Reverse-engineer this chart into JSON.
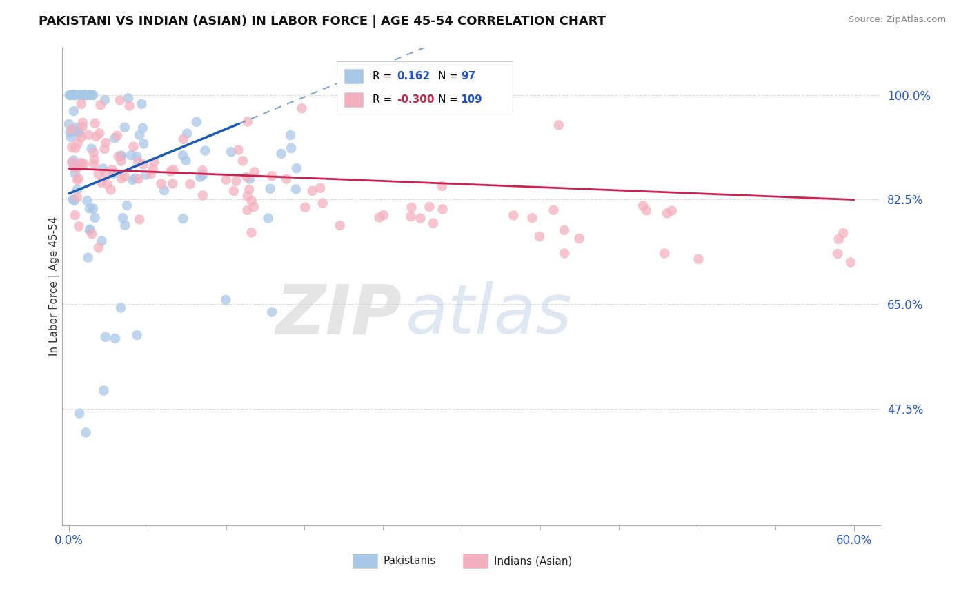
{
  "title": "PAKISTANI VS INDIAN (ASIAN) IN LABOR FORCE | AGE 45-54 CORRELATION CHART",
  "source": "Source: ZipAtlas.com",
  "ylabel": "In Labor Force | Age 45-54",
  "xlim": [
    -0.005,
    0.62
  ],
  "ylim": [
    0.28,
    1.08
  ],
  "yticks": [
    0.475,
    0.65,
    0.825,
    1.0
  ],
  "ytick_labels": [
    "47.5%",
    "65.0%",
    "82.5%",
    "100.0%"
  ],
  "xtick_labels": [
    "0.0%",
    "60.0%"
  ],
  "xticks": [
    0.0,
    0.6
  ],
  "r_pakistani": 0.162,
  "n_pakistani": 97,
  "r_indian": -0.3,
  "n_indian": 109,
  "pakistani_color": "#a8c8e8",
  "indian_color": "#f4b0c0",
  "trend_pakistani_color": "#1a5cb0",
  "trend_indian_color": "#d02050",
  "watermark_zip_color": "#d0d0d0",
  "watermark_atlas_color": "#c0d0e8",
  "background_color": "#ffffff",
  "legend_edge_color": "#cccccc",
  "r_value_blue_color": "#2255cc",
  "r_value_red_color": "#cc2244",
  "n_value_color": "#2255cc",
  "grid_color": "#dddddd",
  "axis_color": "#aaaaaa"
}
